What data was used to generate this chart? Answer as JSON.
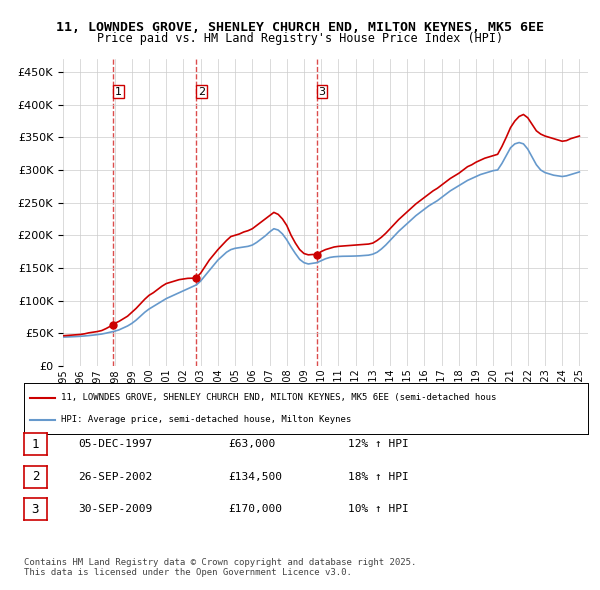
{
  "title_line1": "11, LOWNDES GROVE, SHENLEY CHURCH END, MILTON KEYNES, MK5 6EE",
  "title_line2": "Price paid vs. HM Land Registry's House Price Index (HPI)",
  "ylabel_ticks": [
    "£0",
    "£50K",
    "£100K",
    "£150K",
    "£200K",
    "£250K",
    "£300K",
    "£350K",
    "£400K",
    "£450K"
  ],
  "ytick_values": [
    0,
    50000,
    100000,
    150000,
    200000,
    250000,
    300000,
    350000,
    400000,
    450000
  ],
  "ylim": [
    0,
    470000
  ],
  "xlim_start": 1995.0,
  "xlim_end": 2025.5,
  "legend_line1": "11, LOWNDES GROVE, SHENLEY CHURCH END, MILTON KEYNES, MK5 6EE (semi-detached hous",
  "legend_line2": "HPI: Average price, semi-detached house, Milton Keynes",
  "transactions": [
    {
      "num": 1,
      "date": "05-DEC-1997",
      "year": 1997.92,
      "price": 63000,
      "pct": "12%",
      "direction": "↑"
    },
    {
      "num": 2,
      "date": "26-SEP-2002",
      "year": 2002.73,
      "price": 134500,
      "pct": "18%",
      "direction": "↑"
    },
    {
      "num": 3,
      "date": "30-SEP-2009",
      "year": 2009.73,
      "price": 170000,
      "pct": "10%",
      "direction": "↑"
    }
  ],
  "footnote_line1": "Contains HM Land Registry data © Crown copyright and database right 2025.",
  "footnote_line2": "This data is licensed under the Open Government Licence v3.0.",
  "price_color": "#cc0000",
  "hpi_color": "#6699cc",
  "background_color": "#ffffff",
  "grid_color": "#cccccc",
  "price_paid_data_x": [
    1995.0,
    1995.25,
    1995.5,
    1995.75,
    1996.0,
    1996.25,
    1996.5,
    1996.75,
    1997.0,
    1997.25,
    1997.5,
    1997.92,
    1998.0,
    1998.25,
    1998.5,
    1998.75,
    1999.0,
    1999.25,
    1999.5,
    1999.75,
    2000.0,
    2000.25,
    2000.5,
    2000.75,
    2001.0,
    2001.25,
    2001.5,
    2001.75,
    2002.0,
    2002.25,
    2002.5,
    2002.73,
    2003.0,
    2003.25,
    2003.5,
    2003.75,
    2004.0,
    2004.25,
    2004.5,
    2004.75,
    2005.0,
    2005.25,
    2005.5,
    2005.75,
    2006.0,
    2006.25,
    2006.5,
    2006.75,
    2007.0,
    2007.25,
    2007.5,
    2007.75,
    2008.0,
    2008.25,
    2008.5,
    2008.75,
    2009.0,
    2009.25,
    2009.5,
    2009.73,
    2010.0,
    2010.25,
    2010.5,
    2010.75,
    2011.0,
    2011.25,
    2011.5,
    2011.75,
    2012.0,
    2012.25,
    2012.5,
    2012.75,
    2013.0,
    2013.25,
    2013.5,
    2013.75,
    2014.0,
    2014.25,
    2014.5,
    2014.75,
    2015.0,
    2015.25,
    2015.5,
    2015.75,
    2016.0,
    2016.25,
    2016.5,
    2016.75,
    2017.0,
    2017.25,
    2017.5,
    2017.75,
    2018.0,
    2018.25,
    2018.5,
    2018.75,
    2019.0,
    2019.25,
    2019.5,
    2019.75,
    2020.0,
    2020.25,
    2020.5,
    2020.75,
    2021.0,
    2021.25,
    2021.5,
    2021.75,
    2022.0,
    2022.25,
    2022.5,
    2022.75,
    2023.0,
    2023.25,
    2023.5,
    2023.75,
    2024.0,
    2024.25,
    2024.5,
    2024.75,
    2025.0
  ],
  "price_paid_data_y": [
    46000,
    46500,
    47000,
    47500,
    48000,
    49000,
    50500,
    51500,
    52500,
    54000,
    57000,
    63000,
    65000,
    68000,
    72000,
    76000,
    82000,
    88000,
    95000,
    102000,
    108000,
    112000,
    117000,
    122000,
    126000,
    128000,
    130000,
    132000,
    133000,
    134000,
    134200,
    134500,
    142000,
    152000,
    162000,
    170000,
    178000,
    185000,
    192000,
    198000,
    200000,
    202000,
    205000,
    207000,
    210000,
    215000,
    220000,
    225000,
    230000,
    235000,
    232000,
    225000,
    215000,
    200000,
    188000,
    178000,
    172000,
    170000,
    170500,
    170000,
    175000,
    178000,
    180000,
    182000,
    183000,
    183500,
    184000,
    184500,
    185000,
    185500,
    186000,
    186500,
    188000,
    192000,
    197000,
    203000,
    210000,
    217000,
    224000,
    230000,
    236000,
    242000,
    248000,
    253000,
    258000,
    263000,
    268000,
    272000,
    277000,
    282000,
    287000,
    291000,
    295000,
    300000,
    305000,
    308000,
    312000,
    315000,
    318000,
    320000,
    322000,
    324000,
    336000,
    350000,
    365000,
    375000,
    382000,
    385000,
    380000,
    370000,
    360000,
    355000,
    352000,
    350000,
    348000,
    346000,
    344000,
    345000,
    348000,
    350000,
    352000
  ],
  "hpi_data_x": [
    1995.0,
    1995.25,
    1995.5,
    1995.75,
    1996.0,
    1996.25,
    1996.5,
    1996.75,
    1997.0,
    1997.25,
    1997.5,
    1997.75,
    1998.0,
    1998.25,
    1998.5,
    1998.75,
    1999.0,
    1999.25,
    1999.5,
    1999.75,
    2000.0,
    2000.25,
    2000.5,
    2000.75,
    2001.0,
    2001.25,
    2001.5,
    2001.75,
    2002.0,
    2002.25,
    2002.5,
    2002.75,
    2003.0,
    2003.25,
    2003.5,
    2003.75,
    2004.0,
    2004.25,
    2004.5,
    2004.75,
    2005.0,
    2005.25,
    2005.5,
    2005.75,
    2006.0,
    2006.25,
    2006.5,
    2006.75,
    2007.0,
    2007.25,
    2007.5,
    2007.75,
    2008.0,
    2008.25,
    2008.5,
    2008.75,
    2009.0,
    2009.25,
    2009.5,
    2009.75,
    2010.0,
    2010.25,
    2010.5,
    2010.75,
    2011.0,
    2011.25,
    2011.5,
    2011.75,
    2012.0,
    2012.25,
    2012.5,
    2012.75,
    2013.0,
    2013.25,
    2013.5,
    2013.75,
    2014.0,
    2014.25,
    2014.5,
    2014.75,
    2015.0,
    2015.25,
    2015.5,
    2015.75,
    2016.0,
    2016.25,
    2016.5,
    2016.75,
    2017.0,
    2017.25,
    2017.5,
    2017.75,
    2018.0,
    2018.25,
    2018.5,
    2018.75,
    2019.0,
    2019.25,
    2019.5,
    2019.75,
    2020.0,
    2020.25,
    2020.5,
    2020.75,
    2021.0,
    2021.25,
    2021.5,
    2021.75,
    2022.0,
    2022.25,
    2022.5,
    2022.75,
    2023.0,
    2023.25,
    2023.5,
    2023.75,
    2024.0,
    2024.25,
    2024.5,
    2024.75,
    2025.0
  ],
  "hpi_data_y": [
    44000,
    44200,
    44500,
    44800,
    45200,
    45700,
    46300,
    47000,
    47800,
    48700,
    50000,
    51500,
    53000,
    55000,
    58000,
    61000,
    65000,
    70000,
    76000,
    82000,
    87000,
    91000,
    95000,
    99000,
    103000,
    106000,
    109000,
    112000,
    115000,
    118000,
    121000,
    124000,
    130000,
    138000,
    146000,
    154000,
    162000,
    168000,
    174000,
    178000,
    180000,
    181000,
    182000,
    183000,
    185000,
    189000,
    194000,
    199000,
    205000,
    210000,
    208000,
    202000,
    193000,
    182000,
    172000,
    163000,
    158000,
    156000,
    157000,
    158000,
    161000,
    164000,
    166000,
    167000,
    167500,
    167800,
    167900,
    168000,
    168200,
    168500,
    169000,
    169500,
    171000,
    174000,
    179000,
    185000,
    192000,
    199000,
    206000,
    212000,
    218000,
    224000,
    230000,
    235000,
    240000,
    245000,
    249000,
    253000,
    258000,
    263000,
    268000,
    272000,
    276000,
    280000,
    284000,
    287000,
    290000,
    293000,
    295000,
    297000,
    299000,
    300000,
    310000,
    322000,
    334000,
    340000,
    342000,
    340000,
    332000,
    320000,
    308000,
    300000,
    296000,
    294000,
    292000,
    291000,
    290000,
    291000,
    293000,
    295000,
    297000
  ]
}
